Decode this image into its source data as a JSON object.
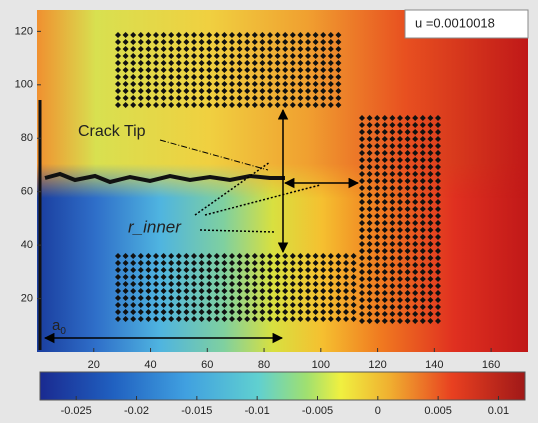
{
  "chart_data": {
    "type": "heatmap",
    "xlim": [
      0,
      173
    ],
    "ylim": [
      0,
      128
    ],
    "xticks": [
      20,
      40,
      60,
      80,
      100,
      120,
      140,
      160
    ],
    "yticks": [
      20,
      40,
      60,
      80,
      100,
      120
    ],
    "clim": [
      -0.028,
      0.0122
    ],
    "cticks": [
      -0.025,
      -0.02,
      -0.015,
      -0.01,
      -0.005,
      0,
      0.005,
      0.01
    ],
    "legend_text": "u =0.0010018",
    "annotations": [
      {
        "text": "Crack Tip"
      },
      {
        "text": "r_inner"
      },
      {
        "text": "a",
        "subscript": "0"
      }
    ]
  }
}
